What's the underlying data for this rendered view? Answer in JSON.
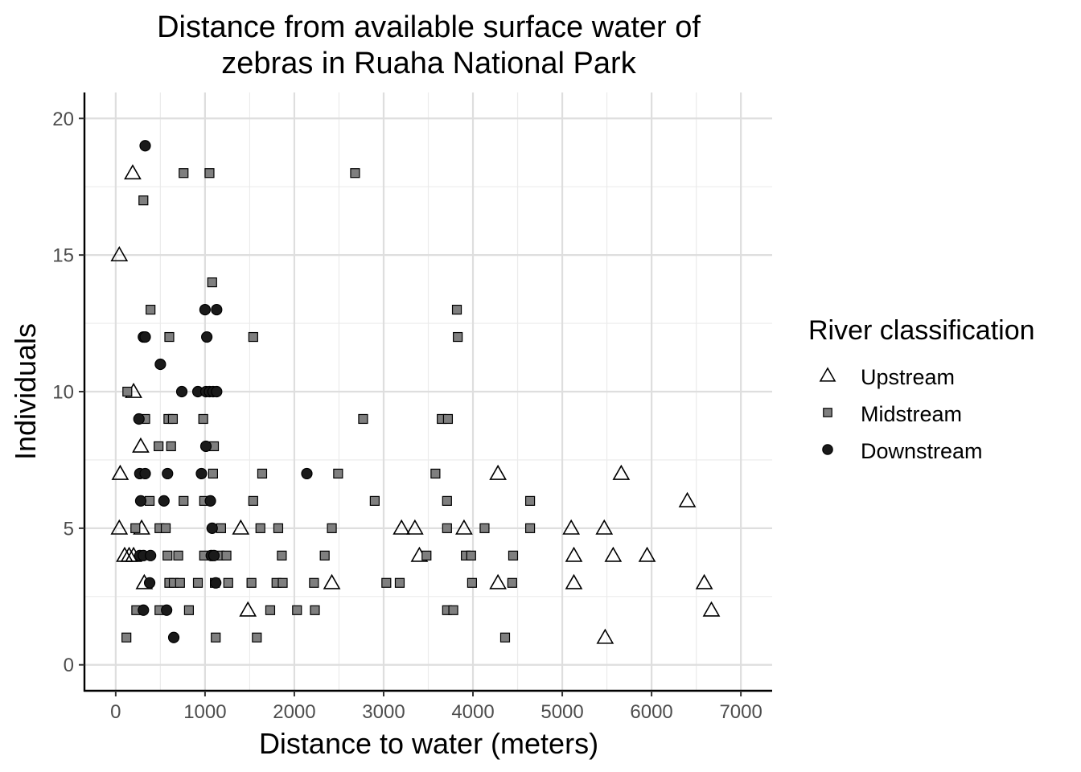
{
  "chart_data": {
    "type": "scatter",
    "title": "Distance from available surface water of zebras in Ruaha National Park",
    "title_lines": [
      "Distance from available surface water of",
      "zebras in Ruaha National Park"
    ],
    "xlabel": "Distance to water (meters)",
    "ylabel": "Individuals",
    "xlim": [
      -350,
      7350
    ],
    "ylim": [
      -0.95,
      20.95
    ],
    "x_ticks": [
      0,
      1000,
      2000,
      3000,
      4000,
      5000,
      6000,
      7000
    ],
    "y_ticks": [
      0,
      5,
      10,
      15,
      20
    ],
    "grid": true,
    "legend": {
      "title": "River classification",
      "placement": "right"
    },
    "series": [
      {
        "name": "Upstream",
        "shape": "triangle",
        "color": "#000000",
        "fill": "none",
        "points": [
          [
            190,
            18
          ],
          [
            40,
            15
          ],
          [
            200,
            10
          ],
          [
            280,
            8
          ],
          [
            50,
            7
          ],
          [
            40,
            5
          ],
          [
            290,
            5
          ],
          [
            100,
            4
          ],
          [
            150,
            4
          ],
          [
            200,
            4
          ],
          [
            320,
            3
          ],
          [
            1400,
            5
          ],
          [
            1480,
            2
          ],
          [
            2420,
            3
          ],
          [
            3200,
            5
          ],
          [
            3350,
            5
          ],
          [
            3400,
            4
          ],
          [
            3900,
            5
          ],
          [
            4280,
            7
          ],
          [
            4280,
            3
          ],
          [
            5100,
            5
          ],
          [
            5130,
            4
          ],
          [
            5130,
            3
          ],
          [
            5470,
            5
          ],
          [
            5480,
            1
          ],
          [
            5570,
            4
          ],
          [
            5660,
            7
          ],
          [
            5950,
            4
          ],
          [
            6400,
            6
          ],
          [
            6590,
            3
          ],
          [
            6670,
            2
          ]
        ]
      },
      {
        "name": "Midstream",
        "shape": "square",
        "color": "#7f7f7f",
        "fill": "#7f7f7f",
        "points": [
          [
            120,
            1
          ],
          [
            130,
            10
          ],
          [
            220,
            5
          ],
          [
            230,
            2
          ],
          [
            310,
            17
          ],
          [
            330,
            9
          ],
          [
            380,
            6
          ],
          [
            390,
            13
          ],
          [
            480,
            8
          ],
          [
            490,
            5
          ],
          [
            490,
            2
          ],
          [
            560,
            5
          ],
          [
            580,
            4
          ],
          [
            590,
            9
          ],
          [
            600,
            12
          ],
          [
            600,
            3
          ],
          [
            620,
            8
          ],
          [
            640,
            9
          ],
          [
            650,
            3
          ],
          [
            700,
            4
          ],
          [
            720,
            3
          ],
          [
            760,
            18
          ],
          [
            760,
            6
          ],
          [
            820,
            2
          ],
          [
            920,
            3
          ],
          [
            980,
            9
          ],
          [
            990,
            6
          ],
          [
            990,
            4
          ],
          [
            1050,
            18
          ],
          [
            1080,
            14
          ],
          [
            1090,
            7
          ],
          [
            1100,
            8
          ],
          [
            1110,
            3
          ],
          [
            1120,
            1
          ],
          [
            1160,
            4
          ],
          [
            1180,
            5
          ],
          [
            1240,
            4
          ],
          [
            1260,
            3
          ],
          [
            1520,
            3
          ],
          [
            1540,
            12
          ],
          [
            1540,
            6
          ],
          [
            1580,
            1
          ],
          [
            1620,
            5
          ],
          [
            1640,
            7
          ],
          [
            1730,
            2
          ],
          [
            1800,
            3
          ],
          [
            1820,
            5
          ],
          [
            1860,
            4
          ],
          [
            1870,
            3
          ],
          [
            2030,
            2
          ],
          [
            2220,
            3
          ],
          [
            2230,
            2
          ],
          [
            2340,
            4
          ],
          [
            2420,
            5
          ],
          [
            2490,
            7
          ],
          [
            2680,
            18
          ],
          [
            2770,
            9
          ],
          [
            2900,
            6
          ],
          [
            3030,
            3
          ],
          [
            3180,
            3
          ],
          [
            3480,
            4
          ],
          [
            3580,
            7
          ],
          [
            3650,
            9
          ],
          [
            3710,
            6
          ],
          [
            3710,
            5
          ],
          [
            3710,
            2
          ],
          [
            3720,
            9
          ],
          [
            3780,
            2
          ],
          [
            3820,
            13
          ],
          [
            3830,
            12
          ],
          [
            3920,
            4
          ],
          [
            3980,
            4
          ],
          [
            3990,
            3
          ],
          [
            4130,
            5
          ],
          [
            4360,
            1
          ],
          [
            4440,
            3
          ],
          [
            4450,
            4
          ],
          [
            4640,
            6
          ],
          [
            4640,
            5
          ]
        ]
      },
      {
        "name": "Downstream",
        "shape": "circle",
        "color": "#1a1a1a",
        "fill": "#1a1a1a",
        "points": [
          [
            330,
            19
          ],
          [
            310,
            12
          ],
          [
            330,
            12
          ],
          [
            260,
            9
          ],
          [
            270,
            7
          ],
          [
            330,
            7
          ],
          [
            280,
            6
          ],
          [
            270,
            4
          ],
          [
            310,
            4
          ],
          [
            390,
            4
          ],
          [
            380,
            3
          ],
          [
            310,
            2
          ],
          [
            500,
            11
          ],
          [
            540,
            6
          ],
          [
            580,
            7
          ],
          [
            570,
            2
          ],
          [
            650,
            1
          ],
          [
            740,
            10
          ],
          [
            920,
            10
          ],
          [
            960,
            7
          ],
          [
            1000,
            13
          ],
          [
            1020,
            12
          ],
          [
            1010,
            10
          ],
          [
            1050,
            10
          ],
          [
            1090,
            10
          ],
          [
            1130,
            10
          ],
          [
            1010,
            8
          ],
          [
            1060,
            6
          ],
          [
            1080,
            5
          ],
          [
            1070,
            4
          ],
          [
            1100,
            4
          ],
          [
            1120,
            3
          ],
          [
            1130,
            13
          ],
          [
            2140,
            7
          ]
        ]
      }
    ]
  }
}
